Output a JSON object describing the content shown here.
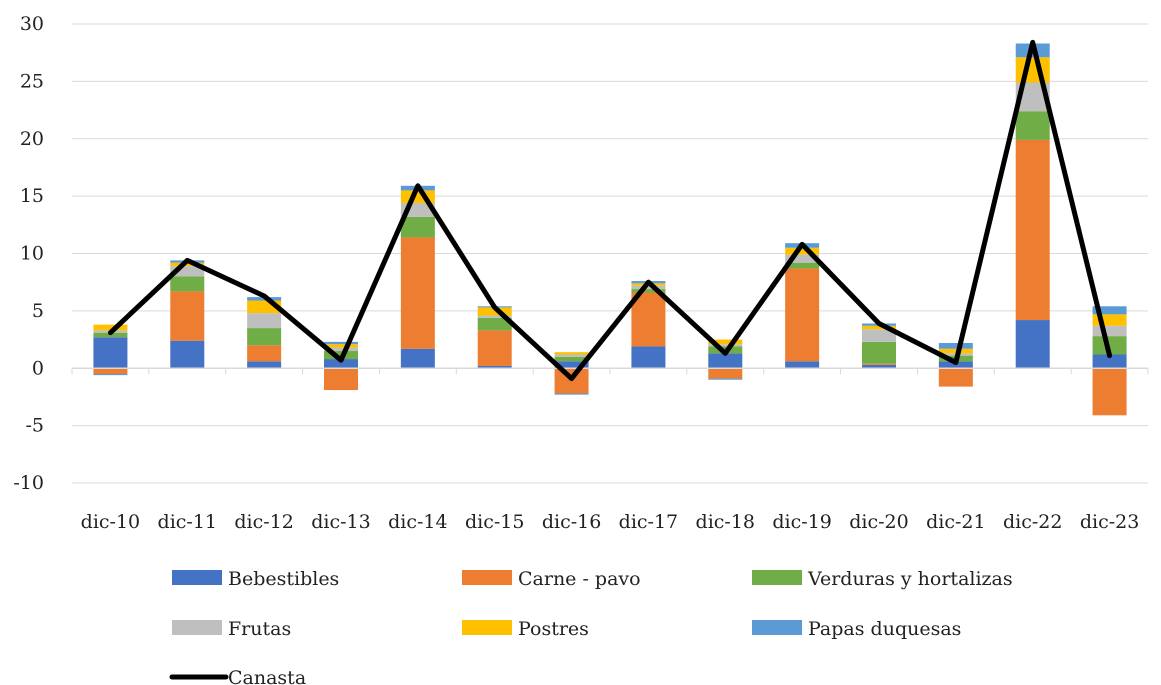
{
  "chart_data": {
    "type": "bar",
    "stacked": true,
    "categories": [
      "dic-10",
      "dic-11",
      "dic-12",
      "dic-13",
      "dic-14",
      "dic-15",
      "dic-16",
      "dic-17",
      "dic-18",
      "dic-19",
      "dic-20",
      "dic-21",
      "dic-22",
      "dic-23"
    ],
    "ylim": [
      -10,
      30
    ],
    "yticks": [
      "-10",
      "-5",
      "0",
      "5",
      "10",
      "15",
      "20",
      "25",
      "30"
    ],
    "grid": true,
    "legend_position": "bottom",
    "series": [
      {
        "name": "Bebestibles",
        "color": "#4472C4",
        "values": [
          2.7,
          2.4,
          0.6,
          0.8,
          1.7,
          0.2,
          0.6,
          1.9,
          1.3,
          0.6,
          0.3,
          0.6,
          4.2,
          1.2
        ]
      },
      {
        "name": "Carne - pavo",
        "color": "#ED7D31",
        "values": [
          -0.5,
          4.3,
          1.4,
          -1.9,
          9.7,
          3.1,
          -2.2,
          4.7,
          -0.9,
          8.1,
          0.1,
          -1.6,
          15.7,
          -4.1
        ]
      },
      {
        "name": "Verduras y hortalizas",
        "color": "#70AD47",
        "values": [
          0.4,
          1.3,
          1.5,
          0.7,
          1.8,
          1.1,
          0.4,
          0.3,
          0.6,
          0.5,
          1.9,
          0.5,
          2.5,
          1.6
        ]
      },
      {
        "name": "Frutas",
        "color": "#BFBFBF",
        "values": [
          0.2,
          0.9,
          1.3,
          0.3,
          1.2,
          0.2,
          0.2,
          0.3,
          0.2,
          0.7,
          1.1,
          0.2,
          2.5,
          0.9
        ]
      },
      {
        "name": "Postres",
        "color": "#FFC000",
        "values": [
          0.5,
          0.3,
          1.1,
          0.3,
          1.1,
          0.7,
          0.2,
          0.2,
          0.4,
          0.6,
          0.3,
          0.4,
          2.2,
          1.0
        ]
      },
      {
        "name": "Papas duquesas",
        "color": "#5B9BD5",
        "values": [
          -0.1,
          0.2,
          0.3,
          0.2,
          0.4,
          0.1,
          -0.1,
          0.2,
          -0.1,
          0.4,
          0.2,
          0.5,
          1.2,
          0.7
        ]
      }
    ],
    "line": {
      "name": "Canasta",
      "color": "#000000",
      "values": [
        3.1,
        9.4,
        6.3,
        0.7,
        15.9,
        5.3,
        -0.9,
        7.5,
        1.3,
        10.8,
        3.9,
        0.5,
        28.4,
        1.1
      ]
    }
  }
}
